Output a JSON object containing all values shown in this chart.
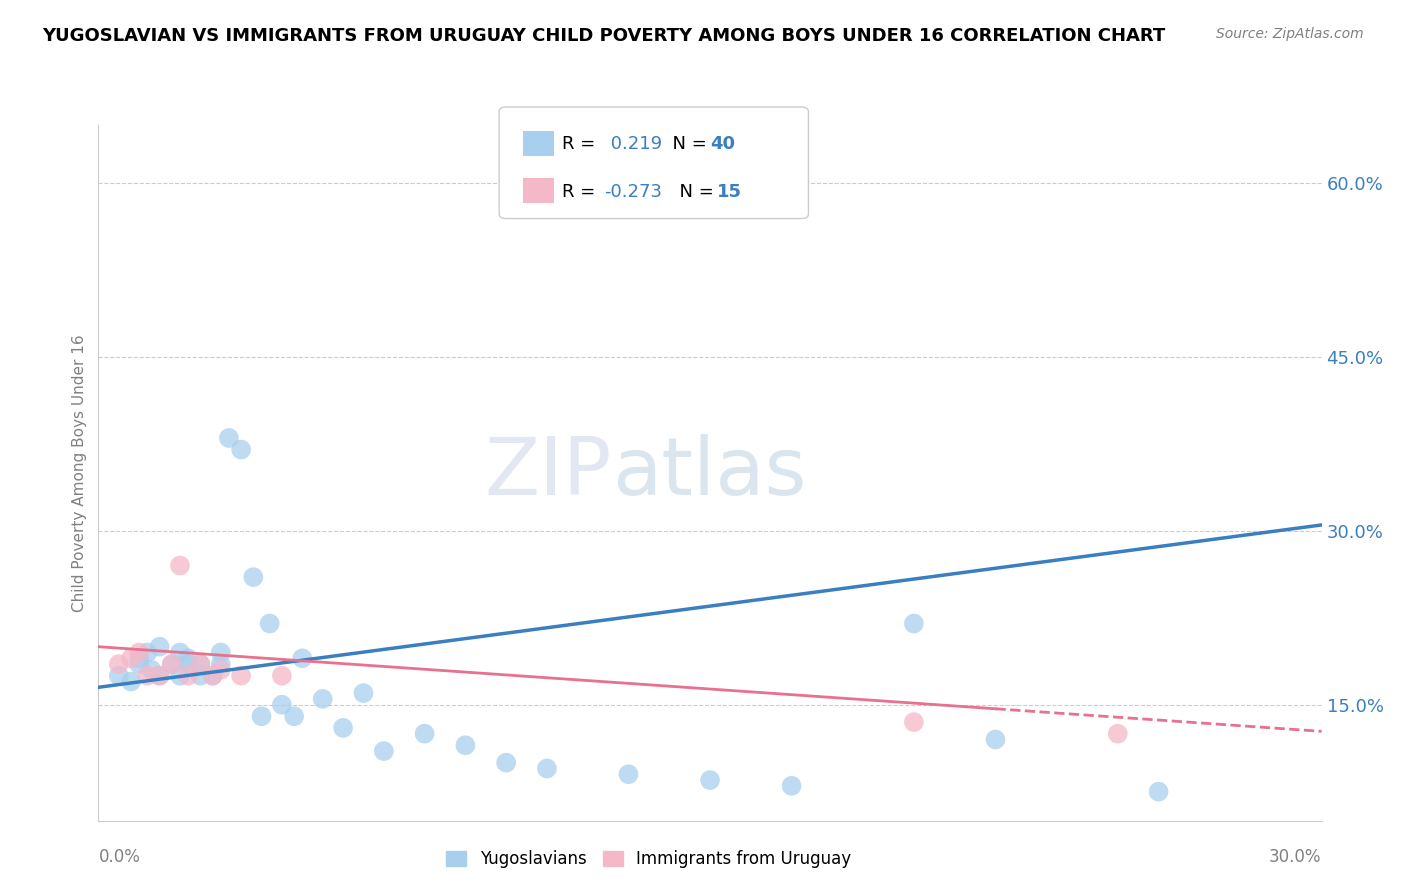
{
  "title": "YUGOSLAVIAN VS IMMIGRANTS FROM URUGUAY CHILD POVERTY AMONG BOYS UNDER 16 CORRELATION CHART",
  "source": "Source: ZipAtlas.com",
  "ylabel": "Child Poverty Among Boys Under 16",
  "x_min": 0.0,
  "x_max": 0.3,
  "y_min": 0.05,
  "y_max": 0.65,
  "yticks": [
    0.15,
    0.3,
    0.45,
    0.6
  ],
  "ytick_labels": [
    "15.0%",
    "30.0%",
    "45.0%",
    "60.0%"
  ],
  "r_blue": 0.219,
  "n_blue": 40,
  "r_pink": -0.273,
  "n_pink": 15,
  "blue_color": "#A8CFED",
  "pink_color": "#F4B8C8",
  "blue_line_color": "#3A7FC1",
  "pink_line_color": "#E87090",
  "watermark_zip": "ZIP",
  "watermark_atlas": "atlas",
  "blue_scatter_x": [
    0.005,
    0.008,
    0.01,
    0.01,
    0.012,
    0.013,
    0.015,
    0.015,
    0.018,
    0.02,
    0.02,
    0.022,
    0.022,
    0.025,
    0.025,
    0.028,
    0.03,
    0.03,
    0.032,
    0.035,
    0.038,
    0.04,
    0.042,
    0.045,
    0.048,
    0.05,
    0.055,
    0.06,
    0.065,
    0.07,
    0.08,
    0.09,
    0.1,
    0.11,
    0.13,
    0.15,
    0.17,
    0.2,
    0.22,
    0.26
  ],
  "blue_scatter_y": [
    0.175,
    0.17,
    0.185,
    0.19,
    0.195,
    0.18,
    0.175,
    0.2,
    0.185,
    0.175,
    0.195,
    0.185,
    0.19,
    0.175,
    0.185,
    0.175,
    0.185,
    0.195,
    0.38,
    0.37,
    0.26,
    0.14,
    0.22,
    0.15,
    0.14,
    0.19,
    0.155,
    0.13,
    0.16,
    0.11,
    0.125,
    0.115,
    0.1,
    0.095,
    0.09,
    0.085,
    0.08,
    0.22,
    0.12,
    0.075
  ],
  "pink_scatter_x": [
    0.005,
    0.008,
    0.01,
    0.012,
    0.015,
    0.018,
    0.02,
    0.022,
    0.025,
    0.028,
    0.03,
    0.035,
    0.045,
    0.2,
    0.25
  ],
  "pink_scatter_y": [
    0.185,
    0.19,
    0.195,
    0.175,
    0.175,
    0.185,
    0.27,
    0.175,
    0.185,
    0.175,
    0.18,
    0.175,
    0.175,
    0.135,
    0.125
  ]
}
